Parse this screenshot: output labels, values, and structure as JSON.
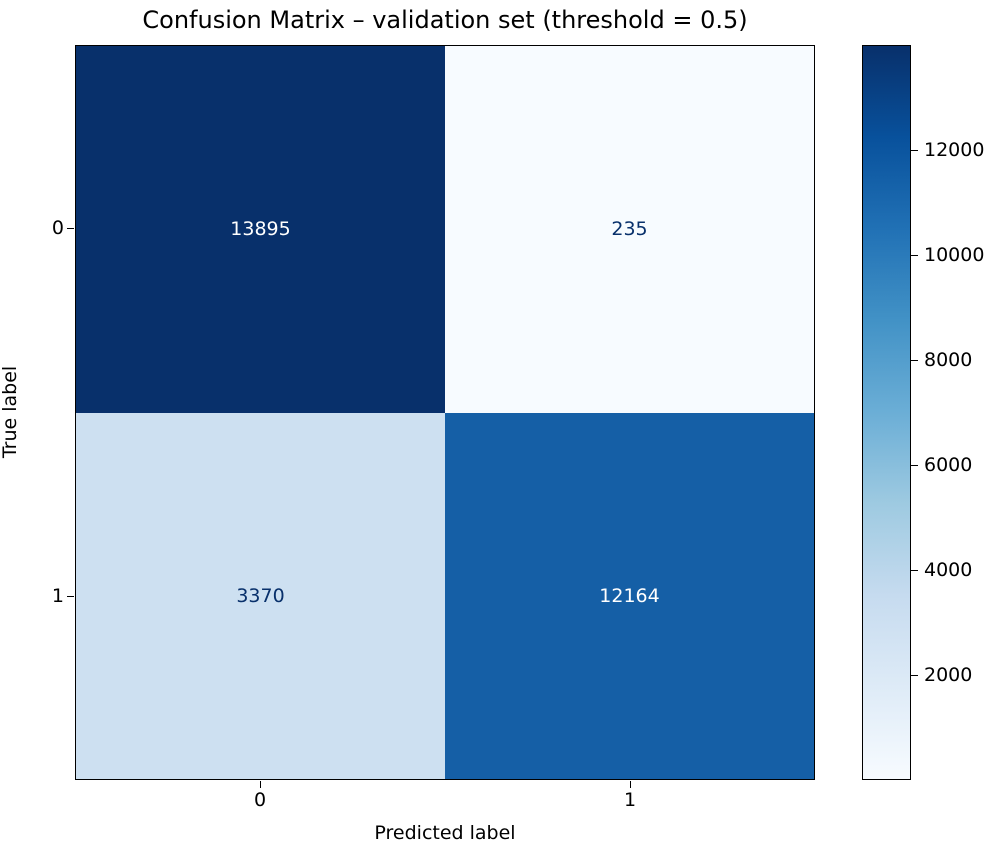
{
  "chart_data": {
    "type": "heatmap",
    "title": "Confusion Matrix – validation set (threshold = 0.5)",
    "xlabel": "Predicted label",
    "ylabel": "True label",
    "x_tick_labels": [
      "0",
      "1"
    ],
    "y_tick_labels": [
      "0",
      "1"
    ],
    "values": [
      [
        13895,
        235
      ],
      [
        3370,
        12164
      ]
    ],
    "colormap": "Blues",
    "grid": false,
    "legend_position": "right-colorbar",
    "colorbar_ticks": [
      2000,
      4000,
      6000,
      8000,
      10000,
      12000
    ],
    "colorbar_range": [
      0,
      14000
    ],
    "cell_colors": [
      [
        "#08306b",
        "#f7fbff"
      ],
      [
        "#cde0f1",
        "#155fa6"
      ]
    ],
    "cell_text_colors": [
      [
        "#ffffff",
        "#08306b"
      ],
      [
        "#08306b",
        "#ffffff"
      ]
    ]
  }
}
